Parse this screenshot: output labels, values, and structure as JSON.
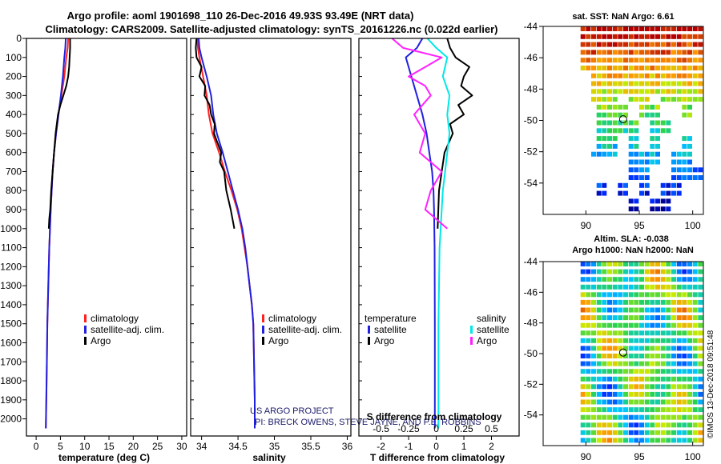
{
  "header": {
    "title_line1": "Argo profile: aoml 1901698_110 26-Dec-2016 49.93S 93.49E (NRT data)",
    "title_line2": "Climatology: CARS2009. Satellite-adjusted climatology: synTS_20161226.nc (0.022d earlier)"
  },
  "credit": {
    "line1": "US ARGO PROJECT",
    "line2": "PI: BRECK OWENS, STEVE JAYNE, AND P.E. ROBBINS"
  },
  "colors": {
    "climatology": "#ff2020",
    "satellite": "#2020e0",
    "argo": "#000000",
    "sal_satellite": "#00e8e8",
    "sal_argo": "#ff20ff"
  },
  "chart_data": [
    {
      "type": "line",
      "id": "temperature",
      "title": "",
      "xlabel": "temperature (deg C)",
      "ylabel": "",
      "xlim": [
        -2,
        31
      ],
      "ylim": [
        2090,
        0
      ],
      "xticks": [
        0,
        5,
        10,
        15,
        20,
        25,
        30
      ],
      "yticks": [
        0,
        100,
        200,
        300,
        400,
        500,
        600,
        700,
        800,
        900,
        1000,
        1100,
        1200,
        1300,
        1400,
        1500,
        1600,
        1700,
        1800,
        1900,
        2000
      ],
      "legend": [
        "climatology",
        "satellite-adj. clim.",
        "Argo"
      ],
      "series": [
        {
          "name": "climatology",
          "color": "#ff2020",
          "x": [
            6.6,
            6.5,
            6.2,
            5.8,
            5.2,
            4.6,
            4.1,
            3.7,
            3.4,
            3.2,
            3.0,
            2.85,
            2.7,
            2.6,
            2.5,
            2.4,
            2.3,
            2.2,
            2.1,
            2.0
          ],
          "y": [
            0,
            50,
            100,
            200,
            300,
            400,
            500,
            600,
            700,
            800,
            900,
            1000,
            1100,
            1200,
            1300,
            1400,
            1500,
            1700,
            1900,
            2050
          ]
        },
        {
          "name": "satellite-adj. clim.",
          "color": "#2020e0",
          "x": [
            6.1,
            6.0,
            5.8,
            5.5,
            5.1,
            4.6,
            4.1,
            3.7,
            3.4,
            3.2,
            3.0,
            2.85,
            2.7,
            2.6,
            2.5,
            2.4,
            2.3,
            2.2,
            2.1,
            2.0
          ],
          "y": [
            0,
            50,
            100,
            200,
            300,
            400,
            500,
            600,
            700,
            800,
            900,
            1000,
            1100,
            1200,
            1300,
            1400,
            1500,
            1700,
            1900,
            2050
          ]
        },
        {
          "name": "Argo",
          "color": "#000000",
          "x": [
            7.0,
            7.0,
            6.9,
            6.8,
            6.6,
            6.2,
            5.6,
            5.0,
            4.5,
            4.0,
            3.7,
            3.4,
            3.1,
            2.9,
            2.7,
            2.6
          ],
          "y": [
            0,
            50,
            100,
            150,
            200,
            250,
            300,
            350,
            400,
            500,
            600,
            700,
            800,
            900,
            950,
            1000
          ]
        }
      ]
    },
    {
      "type": "line",
      "id": "salinity",
      "title": "",
      "xlabel": "salinity",
      "ylabel": "",
      "xlim": [
        33.85,
        36.05
      ],
      "ylim": [
        2090,
        0
      ],
      "xticks": [
        34,
        34.5,
        35,
        35.5,
        36
      ],
      "yticks": [],
      "legend": [
        "climatology",
        "satellite-adj. clim.",
        "Argo"
      ],
      "series": [
        {
          "name": "climatology",
          "color": "#ff2020",
          "x": [
            33.94,
            33.95,
            33.97,
            34.02,
            34.07,
            34.1,
            34.15,
            34.24,
            34.32,
            34.41,
            34.49,
            34.55,
            34.59,
            34.63,
            34.66,
            34.69,
            34.71,
            34.72,
            34.73,
            34.73
          ],
          "y": [
            0,
            50,
            100,
            200,
            300,
            400,
            500,
            600,
            700,
            800,
            900,
            1000,
            1100,
            1200,
            1300,
            1400,
            1500,
            1700,
            1900,
            2050
          ]
        },
        {
          "name": "satellite-adj. clim.",
          "color": "#2020e0",
          "x": [
            33.96,
            33.97,
            34.0,
            34.07,
            34.13,
            34.16,
            34.21,
            34.29,
            34.36,
            34.43,
            34.5,
            34.56,
            34.6,
            34.63,
            34.66,
            34.69,
            34.71,
            34.72,
            34.73,
            34.73
          ],
          "y": [
            0,
            50,
            100,
            200,
            300,
            400,
            500,
            600,
            700,
            800,
            900,
            1000,
            1100,
            1200,
            1300,
            1400,
            1500,
            1700,
            1900,
            2050
          ]
        },
        {
          "name": "Argo",
          "color": "#000000",
          "x": [
            33.93,
            33.92,
            33.93,
            34.0,
            33.97,
            34.05,
            34.04,
            34.11,
            34.13,
            34.18,
            34.17,
            34.22,
            34.27,
            34.25,
            34.31,
            34.34,
            34.4,
            34.45
          ],
          "y": [
            0,
            50,
            100,
            150,
            200,
            250,
            300,
            350,
            400,
            450,
            500,
            550,
            600,
            650,
            700,
            800,
            900,
            1000
          ]
        }
      ]
    },
    {
      "type": "line",
      "id": "difference",
      "title": "",
      "xlabel": "T difference from climatology",
      "xlabel_top": "S difference from climatology",
      "xlim": [
        -2.8,
        3.0
      ],
      "xticks": [
        -2,
        -1,
        0,
        1,
        2
      ],
      "xticks_top": [
        -0.5,
        -0.25,
        0,
        0.25,
        0.5
      ],
      "ylim": [
        2090,
        0
      ],
      "yticks": [],
      "legend": {
        "temperature_heading": "temperature",
        "salinity_heading": "salinity",
        "temperature_items": [
          "satellite",
          "Argo"
        ],
        "salinity_items": [
          "satellite",
          "Argo"
        ]
      },
      "series": [
        {
          "name": "T satellite",
          "color": "#2020e0",
          "x": [
            -0.5,
            -0.7,
            -1.1,
            -0.9,
            -0.7,
            -0.5,
            -0.35,
            -0.25,
            -0.15,
            -0.1,
            -0.08,
            -0.06,
            -0.05,
            -0.05
          ],
          "y": [
            0,
            50,
            100,
            200,
            300,
            400,
            500,
            600,
            700,
            800,
            900,
            1100,
            1500,
            2050
          ]
        },
        {
          "name": "T Argo",
          "color": "#000000",
          "x": [
            0.4,
            0.5,
            0.7,
            1.2,
            1.0,
            0.9,
            1.3,
            0.8,
            1.0,
            0.5,
            0.6,
            0.3,
            0.2,
            0.1,
            0.05
          ],
          "y": [
            0,
            50,
            100,
            150,
            200,
            250,
            300,
            350,
            400,
            450,
            500,
            600,
            700,
            800,
            1000
          ]
        },
        {
          "name": "S satellite",
          "color": "#00e8e8",
          "x": [
            -0.08,
            0.0,
            0.1,
            0.06,
            0.12,
            0.1,
            0.12,
            0.1,
            0.08,
            0.06,
            0.05,
            0.03,
            0.02,
            0.02
          ],
          "y": [
            0,
            50,
            100,
            200,
            300,
            400,
            500,
            600,
            700,
            800,
            900,
            1100,
            1500,
            2050
          ]
        },
        {
          "name": "S Argo",
          "color": "#ff20ff",
          "x": [
            -0.4,
            -0.3,
            0.05,
            -0.1,
            -0.25,
            -0.1,
            -0.05,
            -0.2,
            -0.1,
            -0.15,
            0.05,
            -0.05,
            -0.1,
            0.1
          ],
          "y": [
            0,
            50,
            100,
            150,
            200,
            250,
            300,
            400,
            500,
            600,
            700,
            800,
            900,
            1000
          ]
        }
      ]
    },
    {
      "type": "heatmap",
      "id": "sst_map",
      "title": "sat. SST: NaN Argo: 6.61",
      "xlim": [
        86,
        101
      ],
      "ylim": [
        -56,
        -44
      ],
      "xticks": [
        90,
        95,
        100
      ],
      "yticks": [
        -44,
        -46,
        -48,
        -50,
        -52,
        -54
      ],
      "marker": {
        "lon": 93.49,
        "lat": -49.93
      }
    },
    {
      "type": "heatmap",
      "id": "sla_map",
      "title_line1": "Altim. SLA: -0.038",
      "title_line2": "Argo h1000: NaN h2000: NaN",
      "xlim": [
        86,
        101
      ],
      "ylim": [
        -56,
        -44
      ],
      "xticks": [
        90,
        95,
        100
      ],
      "yticks": [
        -44,
        -46,
        -48,
        -50,
        -52,
        -54
      ],
      "marker": {
        "lon": 93.49,
        "lat": -49.93
      }
    }
  ],
  "footer": {
    "stamp": "©IMOS 13-Dec-2018 09:51:48"
  }
}
